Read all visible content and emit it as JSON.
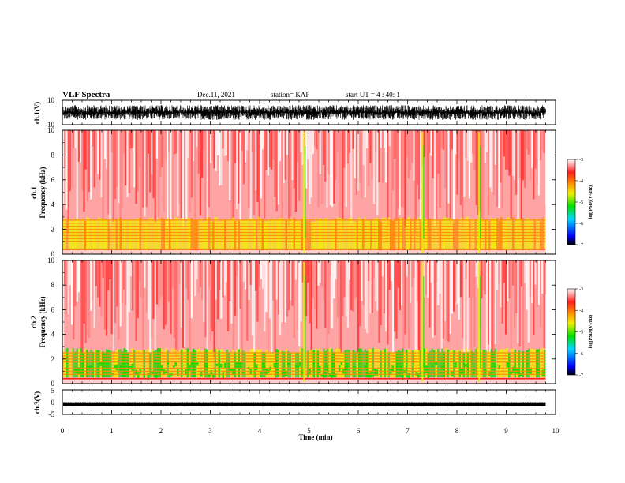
{
  "header": {
    "title": "VLF Spectra",
    "date": "Dec.11, 2021",
    "station": "station= KAP",
    "start": "start UT =   4 : 40: 1"
  },
  "chart_data": [
    {
      "type": "line",
      "panel": "ch1-waveform",
      "ylabel": "ch.1(V)",
      "ylim": [
        -10,
        10
      ],
      "yticks": [
        "10",
        "-10"
      ],
      "xlim": [
        0,
        10
      ],
      "data_extent_min": 9.8,
      "series": [
        {
          "description_values": "dense waveform spanning roughly -6 to 6 V",
          "amplitude_range": [
            -6,
            6
          ]
        }
      ]
    },
    {
      "type": "heatmap",
      "panel": "ch1-spectrogram",
      "ylabel_line1": "ch.1",
      "ylabel_line2": "Frequency (kHz)",
      "ylim": [
        0,
        10
      ],
      "yticks": [
        "0",
        "2",
        "4",
        "6",
        "8",
        "10"
      ],
      "xlim": [
        0,
        10
      ],
      "data_extent_min": 9.8,
      "bands_khz": [
        1.0,
        1.25,
        1.5,
        1.75,
        2.0,
        2.25,
        2.5,
        2.75
      ],
      "strong_region_khz": [
        0.3,
        3.0
      ],
      "vertical_bursts_min": [
        4.9,
        7.3,
        8.45
      ],
      "colorbar": {
        "label": "log(PSD)(V²/Hz)",
        "range": [
          -7,
          -3
        ],
        "ticks": [
          "-3",
          "-4",
          "-5",
          "-6",
          "-7"
        ]
      }
    },
    {
      "type": "heatmap",
      "panel": "ch2-spectrogram",
      "ylabel_line1": "ch.2",
      "ylabel_line2": "Frequency (kHz)",
      "ylim": [
        0,
        10
      ],
      "yticks": [
        "0",
        "2",
        "4",
        "6",
        "8",
        "10"
      ],
      "xlim": [
        0,
        10
      ],
      "data_extent_min": 9.8,
      "bands_khz": [
        0.75,
        1.0,
        1.25,
        1.5,
        1.75,
        2.0,
        2.25,
        2.5
      ],
      "strong_region_khz": [
        0.5,
        2.9
      ],
      "vertical_bursts_min": [
        4.9,
        7.3,
        8.45
      ],
      "colorbar": {
        "label": "log(PSD)(V²/Hz)",
        "range": [
          -7,
          -3
        ],
        "ticks": [
          "-3",
          "-4",
          "-5",
          "-6",
          "-7"
        ]
      }
    },
    {
      "type": "line",
      "panel": "ch3-waveform",
      "ylabel": "ch.3(V)",
      "ylim": [
        -5,
        5
      ],
      "yticks": [
        "5",
        "0",
        "-5"
      ],
      "xlim": [
        0,
        10
      ],
      "data_extent_min": 9.8,
      "series": [
        {
          "description_values": "narrow signal near -1 V",
          "level": -1,
          "amplitude_range": [
            -1.6,
            -0.4
          ]
        }
      ]
    }
  ],
  "xaxis": {
    "label": "Time (min)",
    "ticks": [
      "0",
      "1",
      "2",
      "3",
      "4",
      "5",
      "6",
      "7",
      "8",
      "9",
      "10"
    ]
  },
  "colors": {
    "white": "#ffffff",
    "red": "#ff2020",
    "orange": "#ff8c00",
    "yellow": "#f0f000",
    "green": "#00e000",
    "cyan": "#00d8ff",
    "blue": "#0000ff",
    "black": "#000000"
  }
}
